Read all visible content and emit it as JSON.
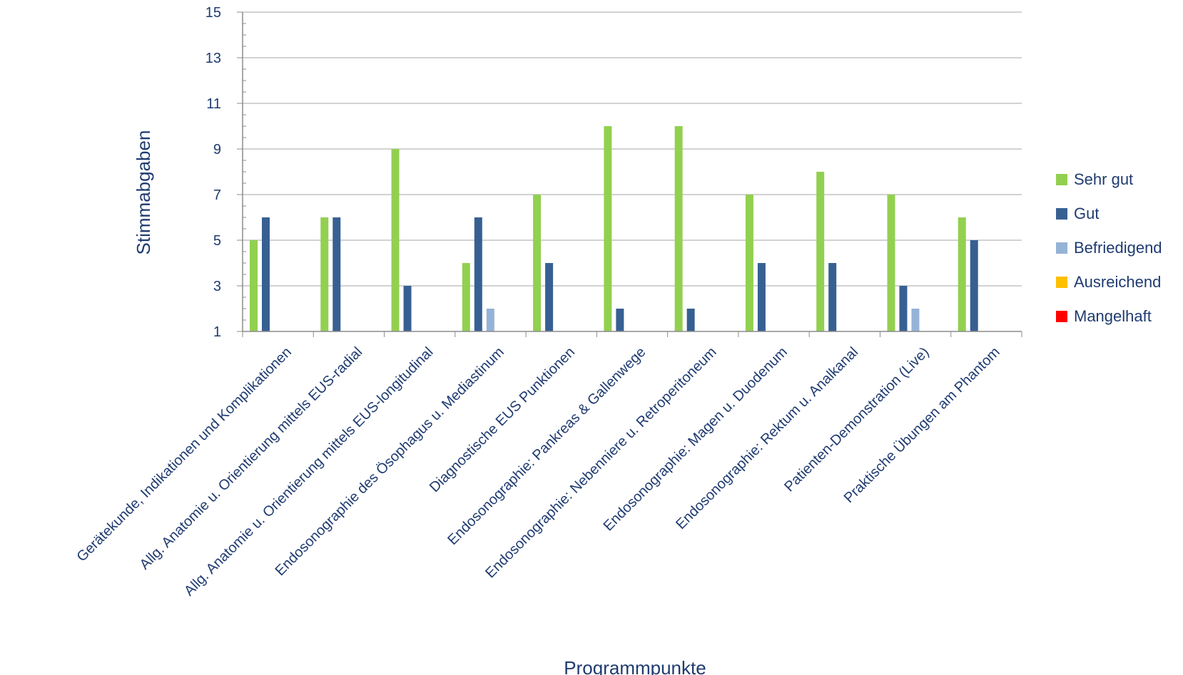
{
  "chart_data": {
    "type": "bar",
    "xlabel": "Programmpunkte",
    "ylabel": "Stimmabgaben",
    "ylim": [
      1,
      15
    ],
    "yticks": [
      1,
      3,
      5,
      7,
      9,
      11,
      13,
      15
    ],
    "grid": true,
    "legend_position": "right",
    "categories": [
      "Gerätekunde, Indikationen und Komplikationen",
      "Allg. Anatomie u. Orientierung mittels EUS-radial",
      "Allg. Anatomie u. Orientierung mittels EUS-longitudinal",
      "Endosonographie des Ösophagus u. Mediastinum",
      "Diagnostische EUS Punktionen",
      "Endosonographie: Pankreas & Gallenwege",
      "Endosonographie: Nebenniere u. Retroperitoneum",
      "Endosonographie: Magen u. Duodenum",
      "Endosonographie: Rektum u. Analkanal",
      "Patienten-Demonstration (Live)",
      "Praktische Übungen am Phantom"
    ],
    "series": [
      {
        "name": "Sehr gut",
        "color": "#92d050",
        "values": [
          5,
          6,
          9,
          4,
          7,
          10,
          10,
          7,
          8,
          7,
          6
        ]
      },
      {
        "name": "Gut",
        "color": "#376092",
        "values": [
          6,
          6,
          3,
          6,
          4,
          2,
          2,
          4,
          4,
          3,
          5
        ]
      },
      {
        "name": "Befriedigend",
        "color": "#95b3d7",
        "values": [
          0,
          0,
          0,
          2,
          0,
          0,
          0,
          0,
          0,
          2,
          0
        ]
      },
      {
        "name": "Ausreichend",
        "color": "#ffc000",
        "values": [
          0,
          0,
          0,
          0,
          0,
          0,
          0,
          0,
          0,
          0,
          0
        ]
      },
      {
        "name": "Mangelhaft",
        "color": "#ff0000",
        "values": [
          0,
          0,
          0,
          0,
          0,
          0,
          0,
          0,
          0,
          0,
          0
        ]
      }
    ]
  }
}
